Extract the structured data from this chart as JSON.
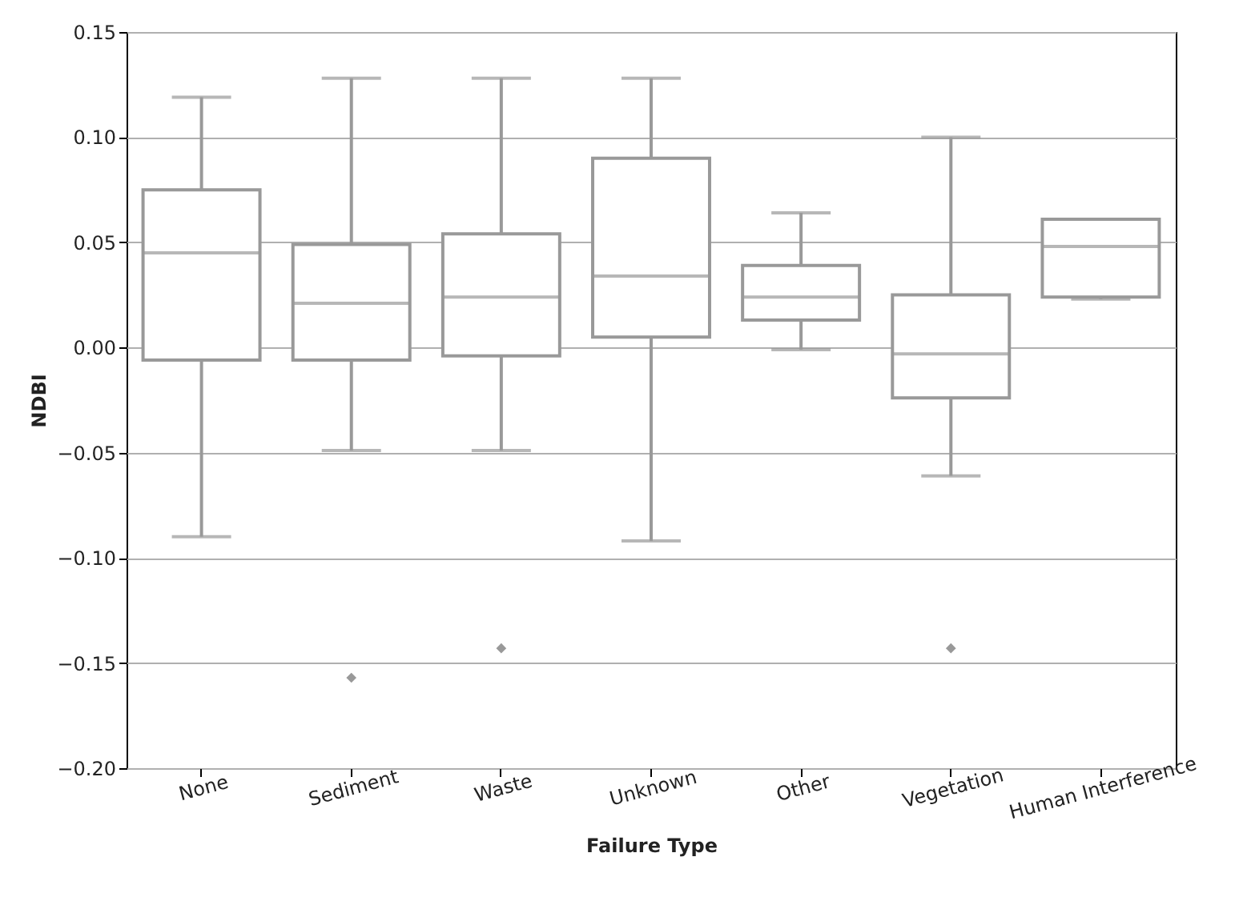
{
  "chart_data": {
    "type": "box",
    "xlabel": "Failure Type",
    "ylabel": "NDBI",
    "categories": [
      "None",
      "Sediment",
      "Waste",
      "Unknown",
      "Other",
      "Vegetation",
      "Human Interference"
    ],
    "series": [
      {
        "color": "#999999",
        "boxes": [
          {
            "low": -0.09,
            "q1": -0.006,
            "median": 0.045,
            "q3": 0.075,
            "high": 0.119
          },
          {
            "low": -0.049,
            "q1": -0.006,
            "median": 0.021,
            "q3": 0.049,
            "high": 0.128,
            "outliers": [
              -0.157
            ]
          },
          {
            "low": -0.049,
            "q1": -0.004,
            "median": 0.024,
            "q3": 0.054,
            "high": 0.128,
            "outliers": [
              -0.143
            ]
          },
          {
            "low": -0.092,
            "q1": 0.005,
            "median": 0.034,
            "q3": 0.09,
            "high": 0.128
          },
          {
            "low": -0.001,
            "q1": 0.013,
            "median": 0.024,
            "q3": 0.039,
            "high": 0.064
          },
          {
            "low": -0.061,
            "q1": -0.024,
            "median": -0.003,
            "q3": 0.025,
            "high": 0.1,
            "outliers": [
              -0.143
            ]
          },
          {
            "low": 0.023,
            "q1": 0.024,
            "median": 0.048,
            "q3": 0.061,
            "high": 0.061
          }
        ]
      }
    ],
    "ylim": [
      -0.2,
      0.15
    ],
    "yticks": [
      {
        "value": -0.2,
        "label": "−0.20"
      },
      {
        "value": -0.15,
        "label": "−0.15"
      },
      {
        "value": -0.1,
        "label": "−0.10"
      },
      {
        "value": -0.05,
        "label": "−0.05"
      },
      {
        "value": 0,
        "label": "0.00"
      },
      {
        "value": 0.05,
        "label": "0.05"
      },
      {
        "value": 0.1,
        "label": "0.10"
      },
      {
        "value": 0.15,
        "label": "0.15"
      }
    ],
    "grid": "y"
  }
}
